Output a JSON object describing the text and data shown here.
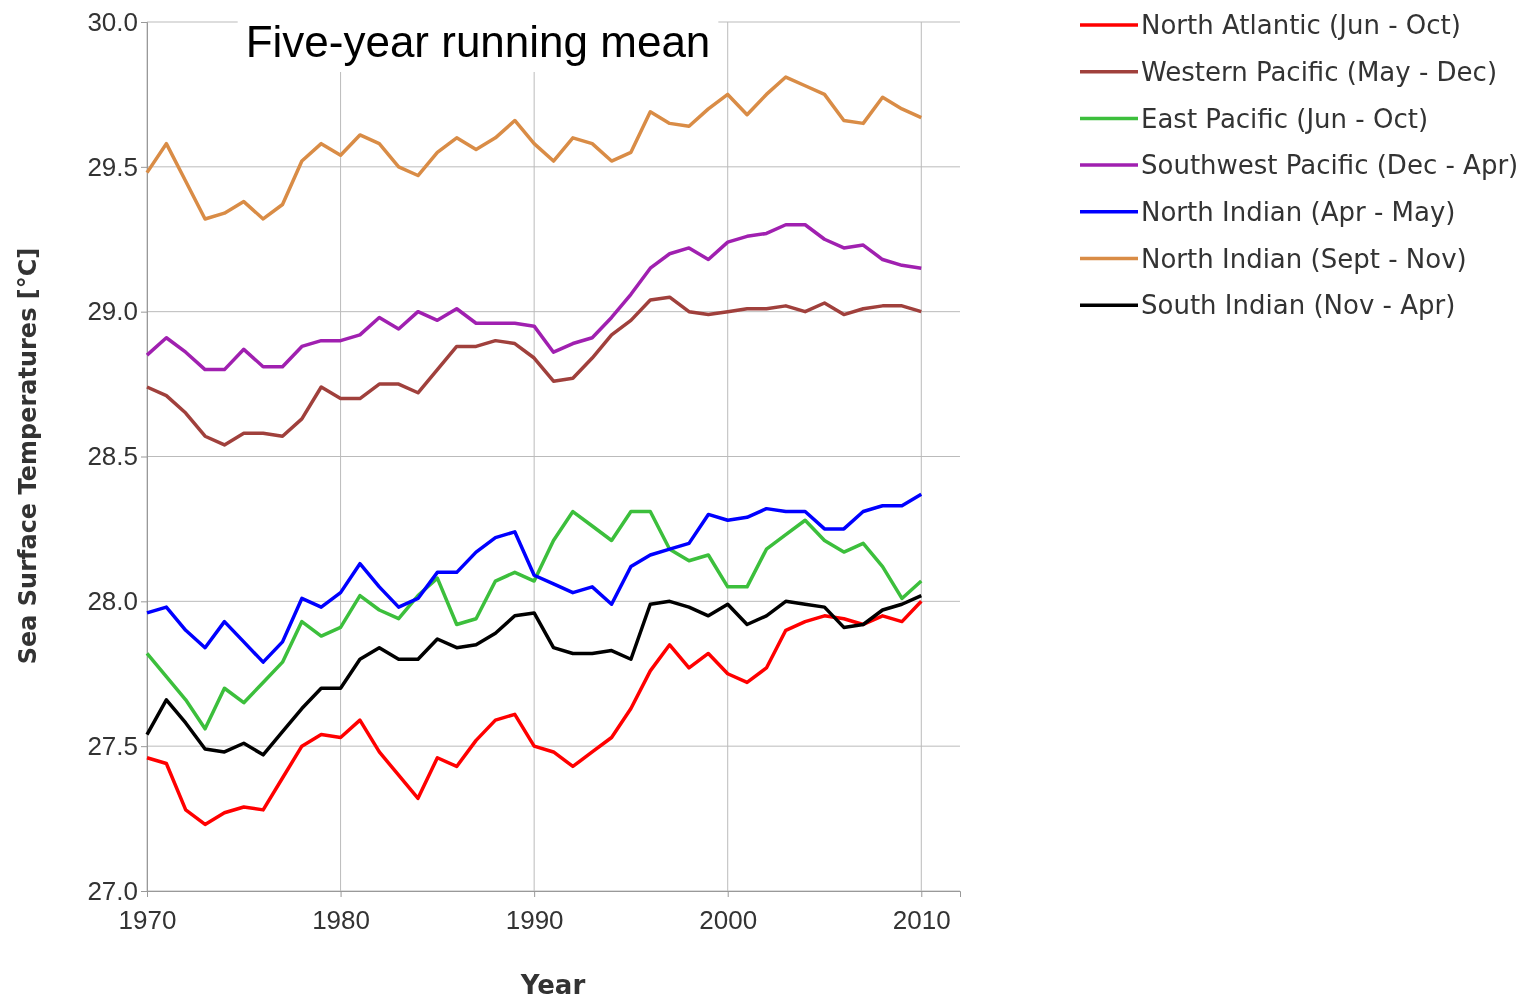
{
  "chart_data": {
    "type": "line",
    "title": "Five-year running mean",
    "xlabel": "Year",
    "ylabel": "Sea Surface Temperatures [°C]",
    "x": [
      1970,
      1971,
      1972,
      1973,
      1974,
      1975,
      1976,
      1977,
      1978,
      1979,
      1980,
      1981,
      1982,
      1983,
      1984,
      1985,
      1986,
      1987,
      1988,
      1989,
      1990,
      1991,
      1992,
      1993,
      1994,
      1995,
      1996,
      1997,
      1998,
      1999,
      2000,
      2001,
      2002,
      2003,
      2004,
      2005,
      2006,
      2007,
      2008,
      2009,
      2010
    ],
    "xlim": [
      1970,
      2012
    ],
    "xticks": [
      1970,
      1980,
      1990,
      2000,
      2010
    ],
    "ylim": [
      27.0,
      30.0
    ],
    "yticks": [
      {
        "value": 27,
        "label": "27.0"
      },
      {
        "value": 27.5,
        "label": "27.5"
      },
      {
        "value": 28,
        "label": "28.0"
      },
      {
        "value": 28.5,
        "label": "28.5"
      },
      {
        "value": 29,
        "label": "29.0"
      },
      {
        "value": 29.5,
        "label": "29.5"
      },
      {
        "value": 30,
        "label": "30.0"
      }
    ],
    "grid": true,
    "legend": "right",
    "line_style": "solid",
    "marker": "none",
    "series": [
      {
        "name": "North Atlantic (Jun - Oct)",
        "color": "#ff0000",
        "values": [
          27.46,
          27.44,
          27.28,
          27.23,
          27.27,
          27.29,
          27.28,
          27.39,
          27.5,
          27.54,
          27.53,
          27.59,
          27.48,
          27.4,
          27.32,
          27.46,
          27.43,
          27.52,
          27.59,
          27.61,
          27.5,
          27.48,
          27.43,
          27.48,
          27.53,
          27.63,
          27.76,
          27.85,
          27.77,
          27.82,
          27.75,
          27.72,
          27.77,
          27.9,
          27.93,
          27.95,
          27.94,
          27.92,
          27.95,
          27.93,
          28.0
        ]
      },
      {
        "name": "Western Pacific (May - Dec)",
        "color": "#a0403c",
        "values": [
          28.74,
          28.71,
          28.65,
          28.57,
          28.54,
          28.58,
          28.58,
          28.57,
          28.63,
          28.74,
          28.7,
          28.7,
          28.75,
          28.75,
          28.72,
          28.8,
          28.88,
          28.88,
          28.9,
          28.89,
          28.84,
          28.76,
          28.77,
          28.84,
          28.92,
          28.97,
          29.04,
          29.05,
          29.0,
          28.99,
          29.0,
          29.01,
          29.01,
          29.02,
          29.0,
          29.03,
          28.99,
          29.01,
          29.02,
          29.02,
          29.0
        ]
      },
      {
        "name": "East Pacific (Jun - Oct)",
        "color": "#3cbf3c",
        "values": [
          27.82,
          27.74,
          27.66,
          27.56,
          27.7,
          27.65,
          27.72,
          27.79,
          27.93,
          27.88,
          27.91,
          28.02,
          27.97,
          27.94,
          28.02,
          28.08,
          27.92,
          27.94,
          28.07,
          28.1,
          28.07,
          28.21,
          28.31,
          28.26,
          28.21,
          28.31,
          28.31,
          28.18,
          28.14,
          28.16,
          28.05,
          28.05,
          28.18,
          28.23,
          28.28,
          28.21,
          28.17,
          28.2,
          28.12,
          28.01,
          28.07
        ]
      },
      {
        "name": "Southwest Pacific (Dec - Apr)",
        "color": "#a020b0",
        "values": [
          28.85,
          28.91,
          28.86,
          28.8,
          28.8,
          28.87,
          28.81,
          28.81,
          28.88,
          28.9,
          28.9,
          28.92,
          28.98,
          28.94,
          29.0,
          28.97,
          29.01,
          28.96,
          28.96,
          28.96,
          28.95,
          28.86,
          28.89,
          28.91,
          28.98,
          29.06,
          29.15,
          29.2,
          29.22,
          29.18,
          29.24,
          29.26,
          29.27,
          29.3,
          29.3,
          29.25,
          29.22,
          29.23,
          29.18,
          29.16,
          29.15
        ]
      },
      {
        "name": "North Indian (Apr - May)",
        "color": "#0000ff",
        "values": [
          27.96,
          27.98,
          27.9,
          27.84,
          27.93,
          27.86,
          27.79,
          27.86,
          28.01,
          27.98,
          28.03,
          28.13,
          28.05,
          27.98,
          28.01,
          28.1,
          28.1,
          28.17,
          28.22,
          28.24,
          28.09,
          28.06,
          28.03,
          28.05,
          27.99,
          28.12,
          28.16,
          28.18,
          28.2,
          28.3,
          28.28,
          28.29,
          28.32,
          28.31,
          28.31,
          28.25,
          28.25,
          28.31,
          28.33,
          28.33,
          28.37
        ]
      },
      {
        "name": "North Indian (Sept - Nov)",
        "color": "#d98c46",
        "values": [
          29.48,
          29.58,
          29.45,
          29.32,
          29.34,
          29.38,
          29.32,
          29.37,
          29.52,
          29.58,
          29.54,
          29.61,
          29.58,
          29.5,
          29.47,
          29.55,
          29.6,
          29.56,
          29.6,
          29.66,
          29.58,
          29.52,
          29.6,
          29.58,
          29.52,
          29.55,
          29.69,
          29.65,
          29.64,
          29.7,
          29.75,
          29.68,
          29.75,
          29.81,
          29.78,
          29.75,
          29.66,
          29.65,
          29.74,
          29.7,
          29.67
        ]
      },
      {
        "name": "South Indian (Nov - Apr)",
        "color": "#000000",
        "values": [
          27.54,
          27.66,
          27.58,
          27.49,
          27.48,
          27.51,
          27.47,
          27.55,
          27.63,
          27.7,
          27.7,
          27.8,
          27.84,
          27.8,
          27.8,
          27.87,
          27.84,
          27.85,
          27.89,
          27.95,
          27.96,
          27.84,
          27.82,
          27.82,
          27.83,
          27.8,
          27.99,
          28.0,
          27.98,
          27.95,
          27.99,
          27.92,
          27.95,
          28.0,
          27.99,
          27.98,
          27.91,
          27.92,
          27.97,
          27.99,
          28.02
        ]
      }
    ]
  }
}
